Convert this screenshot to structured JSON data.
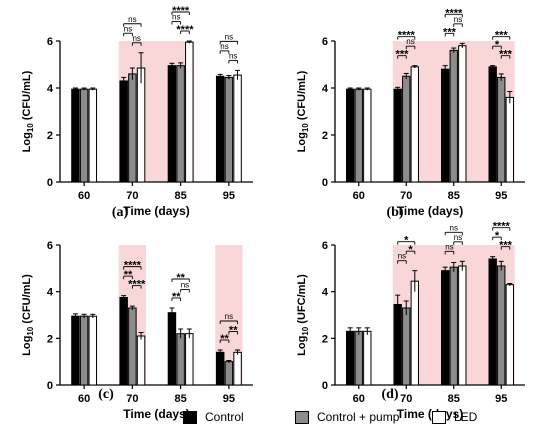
{
  "figure": {
    "colors": {
      "control": "#000000",
      "control_pump": "#8c8c8c",
      "led": "#ffffff",
      "shade": "#f9d6d8"
    },
    "legend": [
      {
        "label": "Control",
        "color": "#000000"
      },
      {
        "label": "Control + pump",
        "color": "#8c8c8c"
      },
      {
        "label": "LED",
        "color": "#ffffff"
      }
    ]
  },
  "chart_data": [
    {
      "panel": "(a)",
      "type": "bar",
      "xlabel": "Time (days)",
      "ylabel": "Log10 (CFU/mL)",
      "ylim": [
        0,
        6
      ],
      "yticks": [
        0,
        2,
        4,
        6
      ],
      "categories": [
        "60",
        "70",
        "85",
        "95"
      ],
      "shaded_categories": [
        "70",
        "85"
      ],
      "series": [
        {
          "name": "Control",
          "values": [
            3.95,
            4.3,
            4.95,
            4.5
          ],
          "errors": [
            0.05,
            0.15,
            0.1,
            0.08
          ]
        },
        {
          "name": "Control + pump",
          "values": [
            3.95,
            4.6,
            4.95,
            4.45
          ],
          "errors": [
            0.05,
            0.25,
            0.12,
            0.08
          ]
        },
        {
          "name": "LED",
          "values": [
            3.95,
            4.85,
            5.95,
            4.55
          ],
          "errors": [
            0.05,
            0.65,
            0.05,
            0.2
          ]
        }
      ],
      "annotations": [
        {
          "category": "70",
          "pair": [
            1,
            2
          ],
          "label": "ns",
          "level": 0
        },
        {
          "category": "70",
          "pair": [
            0,
            1
          ],
          "label": "ns",
          "level": 1
        },
        {
          "category": "70",
          "pair": [
            0,
            2
          ],
          "label": "ns",
          "level": 2
        },
        {
          "category": "85",
          "pair": [
            1,
            2
          ],
          "label": "****",
          "level": 0
        },
        {
          "category": "85",
          "pair": [
            0,
            1
          ],
          "label": "ns",
          "level": 1
        },
        {
          "category": "85",
          "pair": [
            0,
            2
          ],
          "label": "****",
          "level": 2
        },
        {
          "category": "95",
          "pair": [
            1,
            2
          ],
          "label": "ns",
          "level": 0
        },
        {
          "category": "95",
          "pair": [
            0,
            1
          ],
          "label": "ns",
          "level": 1
        },
        {
          "category": "95",
          "pair": [
            0,
            2
          ],
          "label": "ns",
          "level": 2
        }
      ]
    },
    {
      "panel": "(b)",
      "type": "bar",
      "xlabel": "Time (days)",
      "ylabel": "Log10 (CFU/mL)",
      "ylim": [
        0,
        6
      ],
      "yticks": [
        0,
        2,
        4,
        6
      ],
      "categories": [
        "60",
        "70",
        "85",
        "95"
      ],
      "shaded_categories": [
        "70",
        "85",
        "95"
      ],
      "series": [
        {
          "name": "Control",
          "values": [
            3.95,
            3.95,
            4.8,
            4.9
          ],
          "errors": [
            0.05,
            0.08,
            0.15,
            0.05
          ]
        },
        {
          "name": "Control + pump",
          "values": [
            3.95,
            4.5,
            5.6,
            4.45
          ],
          "errors": [
            0.05,
            0.12,
            0.1,
            0.15
          ]
        },
        {
          "name": "LED",
          "values": [
            3.95,
            4.9,
            5.8,
            3.6
          ],
          "errors": [
            0.05,
            0.05,
            0.1,
            0.25
          ]
        }
      ],
      "annotations": [
        {
          "category": "70",
          "pair": [
            0,
            1
          ],
          "label": "***",
          "level": 0
        },
        {
          "category": "70",
          "pair": [
            1,
            2
          ],
          "label": "ns",
          "level": 1
        },
        {
          "category": "70",
          "pair": [
            0,
            2
          ],
          "label": "****",
          "level": 2
        },
        {
          "category": "85",
          "pair": [
            0,
            1
          ],
          "label": "***",
          "level": 0
        },
        {
          "category": "85",
          "pair": [
            1,
            2
          ],
          "label": "ns",
          "level": 1
        },
        {
          "category": "85",
          "pair": [
            0,
            2
          ],
          "label": "****",
          "level": 2
        },
        {
          "category": "95",
          "pair": [
            1,
            2
          ],
          "label": "***",
          "level": 0
        },
        {
          "category": "95",
          "pair": [
            0,
            1
          ],
          "label": "*",
          "level": 1
        },
        {
          "category": "95",
          "pair": [
            0,
            2
          ],
          "label": "***",
          "level": 2
        }
      ]
    },
    {
      "panel": "(c)",
      "type": "bar",
      "xlabel": "Time (days)",
      "ylabel": "Log10 (CFU/mL)",
      "ylim": [
        0,
        6
      ],
      "yticks": [
        0,
        2,
        4,
        6
      ],
      "categories": [
        "60",
        "70",
        "85",
        "95"
      ],
      "shaded_categories": [
        "70",
        "95"
      ],
      "series": [
        {
          "name": "Control",
          "values": [
            2.95,
            3.75,
            3.1,
            1.4
          ],
          "errors": [
            0.1,
            0.08,
            0.2,
            0.1
          ]
        },
        {
          "name": "Control + pump",
          "values": [
            2.95,
            3.3,
            2.2,
            1.0
          ],
          "errors": [
            0.08,
            0.08,
            0.2,
            0.05
          ]
        },
        {
          "name": "LED",
          "values": [
            2.95,
            2.1,
            2.2,
            1.4
          ],
          "errors": [
            0.08,
            0.15,
            0.2,
            0.1
          ]
        }
      ],
      "annotations": [
        {
          "category": "70",
          "pair": [
            1,
            2
          ],
          "label": "****",
          "level": 0
        },
        {
          "category": "70",
          "pair": [
            0,
            1
          ],
          "label": "**",
          "level": 1
        },
        {
          "category": "70",
          "pair": [
            0,
            2
          ],
          "label": "****",
          "level": 2
        },
        {
          "category": "85",
          "pair": [
            0,
            1
          ],
          "label": "**",
          "level": 0
        },
        {
          "category": "85",
          "pair": [
            1,
            2
          ],
          "label": "ns",
          "level": 0.9
        },
        {
          "category": "85",
          "pair": [
            0,
            2
          ],
          "label": "**",
          "level": 2
        },
        {
          "category": "95",
          "pair": [
            0,
            1
          ],
          "label": "**",
          "level": 0
        },
        {
          "category": "95",
          "pair": [
            1,
            2
          ],
          "label": "**",
          "level": 0.9
        },
        {
          "category": "95",
          "pair": [
            0,
            2
          ],
          "label": "ns",
          "level": 2
        }
      ]
    },
    {
      "panel": "(d)",
      "type": "bar",
      "xlabel": "Time (days)",
      "ylabel": "Log10 (UFC/mL)",
      "ylim": [
        0,
        6
      ],
      "yticks": [
        0,
        2,
        4,
        6
      ],
      "categories": [
        "60",
        "70",
        "85",
        "95"
      ],
      "shaded_categories": [
        "70",
        "85",
        "95"
      ],
      "series": [
        {
          "name": "Control",
          "values": [
            2.3,
            3.45,
            4.9,
            5.4
          ],
          "errors": [
            0.15,
            0.4,
            0.15,
            0.1
          ]
        },
        {
          "name": "Control + pump",
          "values": [
            2.3,
            3.3,
            5.05,
            5.1
          ],
          "errors": [
            0.15,
            0.3,
            0.2,
            0.2
          ]
        },
        {
          "name": "LED",
          "values": [
            2.3,
            4.45,
            5.1,
            4.3
          ],
          "errors": [
            0.15,
            0.45,
            0.2,
            0.05
          ]
        }
      ],
      "annotations": [
        {
          "category": "70",
          "pair": [
            0,
            1
          ],
          "label": "ns",
          "level": 0
        },
        {
          "category": "70",
          "pair": [
            1,
            2
          ],
          "label": "*",
          "level": 1
        },
        {
          "category": "70",
          "pair": [
            0,
            2
          ],
          "label": "*",
          "level": 2
        },
        {
          "category": "85",
          "pair": [
            0,
            1
          ],
          "label": "ns",
          "level": 0
        },
        {
          "category": "85",
          "pair": [
            1,
            2
          ],
          "label": "ns",
          "level": 1
        },
        {
          "category": "85",
          "pair": [
            0,
            2
          ],
          "label": "ns",
          "level": 2
        },
        {
          "category": "95",
          "pair": [
            1,
            2
          ],
          "label": "***",
          "level": 0
        },
        {
          "category": "95",
          "pair": [
            0,
            1
          ],
          "label": "*",
          "level": 1
        },
        {
          "category": "95",
          "pair": [
            0,
            2
          ],
          "label": "****",
          "level": 2
        }
      ]
    }
  ]
}
